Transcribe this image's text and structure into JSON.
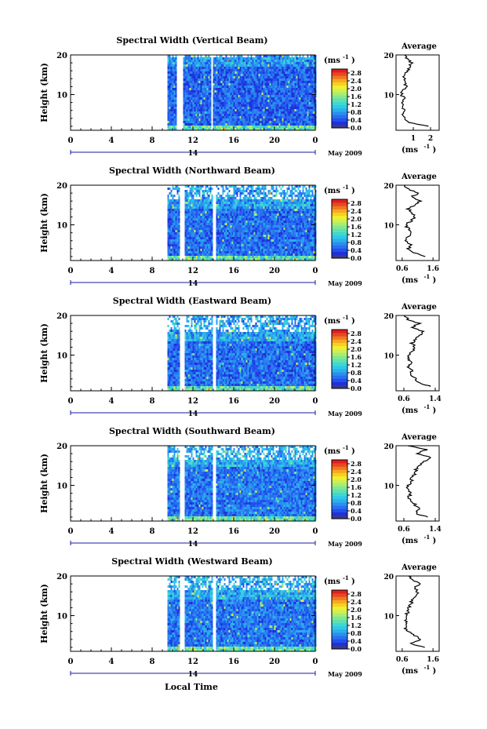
{
  "figure": {
    "xlabel": "Local Time",
    "colorbar_unit_base": "(ms",
    "colorbar_unit_exp": "-1",
    "date_label": "May 2009",
    "day_label": "14",
    "avg_title": "Average",
    "height_label": "Height (km)"
  },
  "colors": {
    "background": "#ffffff",
    "axis": "#000000",
    "day_marker": "#1a1aa0",
    "colorscale": [
      "#3a3a8c",
      "#2030d8",
      "#2050f0",
      "#2a70f0",
      "#2a90ee",
      "#2bb0ee",
      "#30c8e8",
      "#40d8d0",
      "#60e0b0",
      "#80e890",
      "#a8ee70",
      "#d0f050",
      "#f0f030",
      "#f8d020",
      "#f8a820",
      "#f07820",
      "#e84820",
      "#e02020"
    ]
  },
  "chart_data": [
    {
      "type": "heatmap",
      "title": "Spectral Width (Vertical Beam)",
      "x_ticks": [
        "0",
        "4",
        "8",
        "12",
        "16",
        "20",
        "0"
      ],
      "xlim": [
        0,
        24
      ],
      "y_ticks": [
        "10",
        "20"
      ],
      "ylim": [
        1,
        20
      ],
      "colorbar_ticks": [
        "0.0",
        "0.4",
        "0.8",
        "1.2",
        "1.6",
        "2.0",
        "2.4",
        "2.8"
      ],
      "colorbar_range": [
        0,
        3.0
      ],
      "data_start_hour": 9.5,
      "gaps": [
        [
          10.4,
          10.9
        ],
        [
          13.7,
          13.9
        ]
      ],
      "clean_top_km": 19.5,
      "base_level": 0.55,
      "avg_profile": {
        "x_ticks": [
          "1",
          "2"
        ],
        "xlim": [
          0,
          2.5
        ],
        "ylim": [
          1,
          20
        ],
        "y_ticks": [
          "10",
          "20"
        ],
        "height_km": [
          2,
          3,
          4,
          5,
          6,
          7,
          8,
          9,
          10,
          11,
          12,
          13,
          14,
          15,
          16,
          17,
          18,
          19,
          20
        ],
        "values": [
          1.8,
          0.7,
          0.5,
          0.4,
          0.5,
          0.3,
          0.4,
          0.5,
          0.3,
          0.4,
          0.6,
          0.5,
          0.5,
          0.4,
          0.7,
          0.8,
          0.9,
          0.6,
          0.5
        ]
      }
    },
    {
      "type": "heatmap",
      "title": "Spectral Width (Northward Beam)",
      "x_ticks": [
        "0",
        "4",
        "8",
        "12",
        "16",
        "20",
        "0"
      ],
      "xlim": [
        0,
        24
      ],
      "y_ticks": [
        "10",
        "20"
      ],
      "ylim": [
        1,
        20
      ],
      "colorbar_ticks": [
        "0.0",
        "0.4",
        "0.8",
        "1.2",
        "1.6",
        "2.0",
        "2.4",
        "2.8"
      ],
      "colorbar_range": [
        0,
        3.0
      ],
      "data_start_hour": 9.5,
      "gaps": [
        [
          10.6,
          11.1
        ],
        [
          13.9,
          14.2
        ]
      ],
      "clean_top_km": 16.5,
      "base_level": 0.6,
      "avg_profile": {
        "x_ticks": [
          "0.6",
          "1.6"
        ],
        "xlim": [
          0.4,
          1.8
        ],
        "ylim": [
          1,
          20
        ],
        "y_ticks": [
          "10",
          "20"
        ],
        "height_km": [
          2,
          3,
          4,
          5,
          6,
          7,
          8,
          9,
          10,
          11,
          12,
          13,
          14,
          15,
          16,
          17,
          18,
          19,
          20
        ],
        "values": [
          1.4,
          1.0,
          0.8,
          0.9,
          0.7,
          0.8,
          0.9,
          0.8,
          0.7,
          0.9,
          1.0,
          0.9,
          0.8,
          1.0,
          1.2,
          0.9,
          1.1,
          0.8,
          0.7
        ]
      }
    },
    {
      "type": "heatmap",
      "title": "Spectral Width (Eastward Beam)",
      "x_ticks": [
        "0",
        "4",
        "8",
        "12",
        "16",
        "20",
        "0"
      ],
      "xlim": [
        0,
        24
      ],
      "y_ticks": [
        "10",
        "20"
      ],
      "ylim": [
        1,
        20
      ],
      "colorbar_ticks": [
        "0.0",
        "0.4",
        "0.8",
        "1.2",
        "1.6",
        "2.0",
        "2.4",
        "2.8"
      ],
      "colorbar_range": [
        0,
        3.0
      ],
      "data_start_hour": 9.5,
      "gaps": [
        [
          10.6,
          11.1
        ],
        [
          13.9,
          14.2
        ]
      ],
      "clean_top_km": 16.0,
      "base_level": 0.6,
      "avg_profile": {
        "x_ticks": [
          "0.6",
          "1.4"
        ],
        "xlim": [
          0.4,
          1.5
        ],
        "ylim": [
          1,
          20
        ],
        "y_ticks": [
          "10",
          "20"
        ],
        "height_km": [
          2,
          3,
          4,
          5,
          6,
          7,
          8,
          9,
          10,
          11,
          12,
          13,
          14,
          15,
          16,
          17,
          18,
          19,
          20
        ],
        "values": [
          1.3,
          1.0,
          0.9,
          0.8,
          0.8,
          0.7,
          0.8,
          0.7,
          0.7,
          0.8,
          0.9,
          0.8,
          0.9,
          1.0,
          1.1,
          0.8,
          1.0,
          0.7,
          0.6
        ]
      }
    },
    {
      "type": "heatmap",
      "title": "Spectral Width (Southward Beam)",
      "x_ticks": [
        "0",
        "4",
        "8",
        "12",
        "16",
        "20",
        "0"
      ],
      "xlim": [
        0,
        24
      ],
      "y_ticks": [
        "10",
        "20"
      ],
      "ylim": [
        1,
        20
      ],
      "colorbar_ticks": [
        "0.0",
        "0.4",
        "0.8",
        "1.2",
        "1.6",
        "2.0",
        "2.4",
        "2.8"
      ],
      "colorbar_range": [
        0,
        3.0
      ],
      "data_start_hour": 9.5,
      "gaps": [
        [
          10.6,
          11.1
        ],
        [
          13.9,
          14.2
        ]
      ],
      "clean_top_km": 17.0,
      "base_level": 0.65,
      "avg_profile": {
        "x_ticks": [
          "0.6",
          "1.4"
        ],
        "xlim": [
          0.4,
          1.5
        ],
        "ylim": [
          1,
          20
        ],
        "y_ticks": [
          "10",
          "20"
        ],
        "height_km": [
          2,
          3,
          4,
          5,
          6,
          7,
          8,
          9,
          10,
          11,
          12,
          13,
          14,
          15,
          16,
          17,
          18,
          19,
          20
        ],
        "values": [
          1.2,
          0.9,
          1.0,
          0.9,
          0.8,
          0.7,
          0.8,
          0.7,
          0.7,
          0.8,
          0.8,
          0.9,
          0.9,
          1.0,
          1.1,
          1.3,
          0.9,
          1.2,
          0.7
        ]
      }
    },
    {
      "type": "heatmap",
      "title": "Spectral Width (Westward Beam)",
      "x_ticks": [
        "0",
        "4",
        "8",
        "12",
        "16",
        "20",
        "0"
      ],
      "xlim": [
        0,
        24
      ],
      "y_ticks": [
        "10",
        "20"
      ],
      "ylim": [
        1,
        20
      ],
      "colorbar_ticks": [
        "0.0",
        "0.4",
        "0.8",
        "1.2",
        "1.6",
        "2.0",
        "2.4",
        "2.8"
      ],
      "colorbar_range": [
        0,
        3.0
      ],
      "data_start_hour": 9.5,
      "gaps": [
        [
          10.6,
          11.1
        ],
        [
          13.9,
          14.2
        ]
      ],
      "clean_top_km": 16.5,
      "base_level": 0.65,
      "avg_profile": {
        "x_ticks": [
          "0.6",
          "1.6"
        ],
        "xlim": [
          0.4,
          1.8
        ],
        "ylim": [
          1,
          20
        ],
        "y_ticks": [
          "10",
          "20"
        ],
        "height_km": [
          2,
          3,
          4,
          5,
          6,
          7,
          8,
          9,
          10,
          11,
          12,
          13,
          14,
          15,
          16,
          17,
          18,
          19,
          20
        ],
        "values": [
          1.3,
          0.9,
          1.2,
          1.0,
          0.8,
          0.7,
          0.8,
          0.7,
          0.7,
          0.8,
          0.8,
          0.9,
          0.9,
          1.0,
          1.1,
          1.0,
          1.2,
          0.9,
          0.8
        ]
      }
    }
  ]
}
